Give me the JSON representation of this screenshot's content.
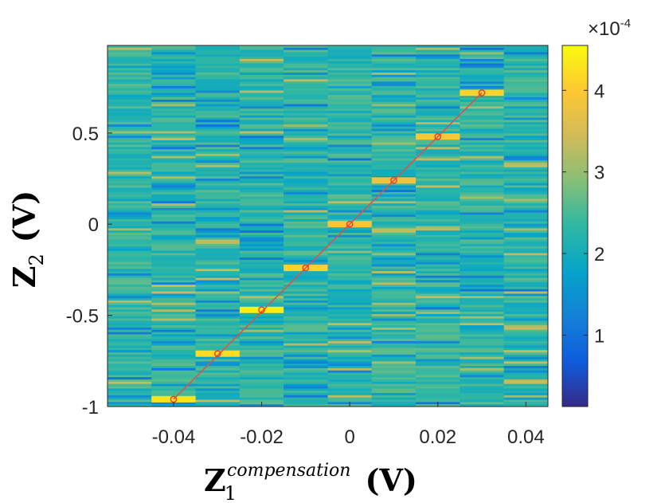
{
  "chart_data": {
    "type": "heatmap",
    "title": "",
    "xlabel": {
      "base": "Z",
      "subscript": "1",
      "superscript": "compensation",
      "unit": "(V)"
    },
    "ylabel": {
      "base": "Z",
      "subscript": "2",
      "unit": "(V)"
    },
    "x_columns": [
      -0.05,
      -0.04,
      -0.03,
      -0.02,
      -0.01,
      0,
      0.01,
      0.02,
      0.03,
      0.04
    ],
    "xlim": [
      -0.055,
      0.045
    ],
    "ylim": [
      -1.0,
      0.98
    ],
    "x_ticks": [
      -0.04,
      -0.02,
      0,
      0.02,
      0.04
    ],
    "x_tick_labels": [
      "-0.04",
      "-0.02",
      "0",
      "0.02",
      "0.04"
    ],
    "y_ticks": [
      -1,
      -0.5,
      0,
      0.5
    ],
    "y_tick_labels": [
      "-1",
      "-0.5",
      "0",
      "0.5"
    ],
    "colorbar": {
      "range": [
        1.25e-05,
        0.000455
      ],
      "ticks": [
        1,
        2,
        3,
        4
      ],
      "tick_labels": [
        "1",
        "2",
        "3",
        "4"
      ],
      "exponent_label": "×10",
      "exponent_power": "-4",
      "colormap": "parula",
      "colors": [
        "#352a87",
        "#0f5cdd",
        "#1481d6",
        "#06a4ca",
        "#2eb7a4",
        "#87bf77",
        "#d1bb59",
        "#fec832",
        "#f9fb0e"
      ]
    },
    "peaks": [
      {
        "x": -0.04,
        "y": -0.96,
        "value": 4.3
      },
      {
        "x": -0.03,
        "y": -0.71,
        "value": 4.2
      },
      {
        "x": -0.02,
        "y": -0.47,
        "value": 4.4
      },
      {
        "x": -0.01,
        "y": -0.24,
        "value": 4.1
      },
      {
        "x": 0,
        "y": 0.0,
        "value": 3.9
      },
      {
        "x": 0.01,
        "y": 0.24,
        "value": 3.8
      },
      {
        "x": 0.02,
        "y": 0.48,
        "value": 4.0
      },
      {
        "x": 0.03,
        "y": 0.72,
        "value": 4.1
      }
    ],
    "background_value_range": [
      1.0,
      3.4
    ],
    "trend_line": {
      "from": [
        -0.04,
        -0.96
      ],
      "to": [
        0.03,
        0.72
      ],
      "color": "#d9534f"
    }
  }
}
